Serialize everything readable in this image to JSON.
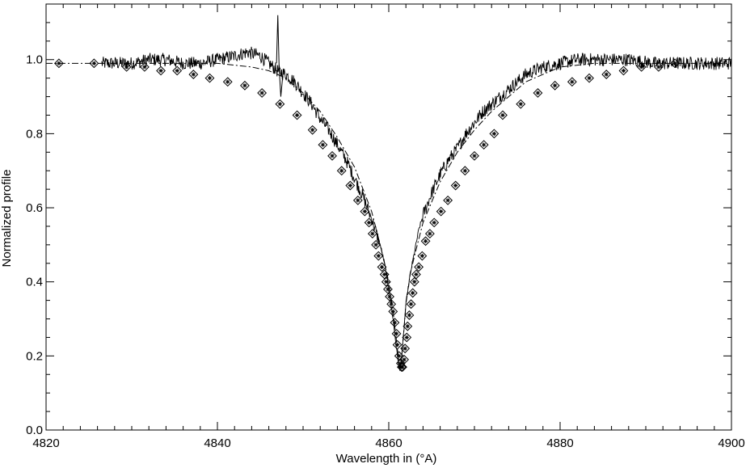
{
  "chart_data": {
    "type": "line",
    "xlabel": "Wavelength in (°A)",
    "ylabel": "Normalized profile",
    "xlim": [
      4820,
      4900
    ],
    "ylim": [
      0.0,
      1.15
    ],
    "x_ticks": [
      4820,
      4840,
      4860,
      4880,
      4900
    ],
    "x_tick_labels": [
      "4820",
      "4840",
      "4860",
      "4880",
      "4900"
    ],
    "y_ticks": [
      0.0,
      0.2,
      0.4,
      0.6,
      0.8,
      1.0
    ],
    "y_tick_labels": [
      "0.0",
      "0.2",
      "0.4",
      "0.6",
      "0.8",
      "1.0"
    ],
    "grid": false,
    "legend": "none",
    "series": [
      {
        "kind": "line-noisy",
        "style": "solid",
        "color": "#000000",
        "x": [
          4826.5,
          4828,
          4830,
          4832,
          4834,
          4836,
          4838,
          4840,
          4842,
          4843.5,
          4845,
          4846,
          4847,
          4848,
          4849,
          4850,
          4851,
          4852,
          4853,
          4854,
          4855,
          4856,
          4857,
          4858,
          4859,
          4859.5,
          4860,
          4860.5,
          4861,
          4861.3,
          4861.6,
          4862,
          4862.5,
          4863,
          4863.5,
          4864,
          4865,
          4866,
          4867,
          4868,
          4869,
          4870,
          4871,
          4872,
          4873,
          4874,
          4875,
          4876,
          4878,
          4880,
          4882,
          4885,
          4888,
          4891,
          4894,
          4897,
          4900
        ],
        "y": [
          0.99,
          0.99,
          0.99,
          1.0,
          1.0,
          0.99,
          0.99,
          1.0,
          1.01,
          1.02,
          1.01,
          0.99,
          0.97,
          0.96,
          0.94,
          0.91,
          0.88,
          0.84,
          0.81,
          0.77,
          0.73,
          0.68,
          0.63,
          0.57,
          0.5,
          0.45,
          0.38,
          0.3,
          0.2,
          0.16,
          0.22,
          0.34,
          0.42,
          0.48,
          0.54,
          0.58,
          0.64,
          0.69,
          0.73,
          0.76,
          0.8,
          0.83,
          0.86,
          0.88,
          0.9,
          0.92,
          0.94,
          0.96,
          0.98,
          0.99,
          1.0,
          1.0,
          1.0,
          0.99,
          0.99,
          0.99,
          0.99
        ]
      },
      {
        "kind": "line-dashed",
        "style": "dashed",
        "color": "#000000",
        "x": [
          4820,
          4824,
          4828,
          4832,
          4836,
          4840,
          4844,
          4846,
          4848,
          4850,
          4852,
          4854,
          4856,
          4858,
          4859,
          4860,
          4860.5,
          4861,
          4861.3,
          4861.6,
          4862,
          4862.5,
          4863,
          4864,
          4866,
          4868,
          4870,
          4872,
          4874,
          4876,
          4878,
          4880,
          4884,
          4888,
          4892,
          4896,
          4900
        ],
        "y": [
          0.99,
          0.99,
          0.99,
          0.99,
          0.99,
          0.99,
          0.98,
          0.97,
          0.95,
          0.91,
          0.86,
          0.79,
          0.71,
          0.59,
          0.5,
          0.4,
          0.32,
          0.22,
          0.16,
          0.22,
          0.34,
          0.42,
          0.47,
          0.56,
          0.67,
          0.75,
          0.81,
          0.86,
          0.9,
          0.94,
          0.96,
          0.98,
          0.99,
          0.99,
          0.99,
          0.99,
          0.99
        ]
      },
      {
        "kind": "markers",
        "marker": "diamond-with-asterisk",
        "color": "#000000",
        "x": [
          4821.5,
          4825.6,
          4829.4,
          4831.5,
          4833.4,
          4835.3,
          4837.2,
          4839.1,
          4841.2,
          4843.2,
          4845.2,
          4847.3,
          4849.3,
          4851.1,
          4852.3,
          4853.4,
          4854.5,
          4855.5,
          4856.4,
          4857.2,
          4857.7,
          4858.1,
          4858.5,
          4858.8,
          4859.2,
          4859.5,
          4859.7,
          4859.9,
          4860.1,
          4860.3,
          4860.5,
          4860.7,
          4860.9,
          4861.0,
          4861.2,
          4861.4,
          4861.5,
          4861.6,
          4861.8,
          4861.9,
          4862.1,
          4862.2,
          4862.4,
          4862.6,
          4862.8,
          4863.0,
          4863.2,
          4863.5,
          4863.9,
          4864.3,
          4864.8,
          4865.3,
          4866.1,
          4866.9,
          4867.8,
          4868.9,
          4870.0,
          4871.1,
          4872.3,
          4873.3,
          4875.4,
          4877.4,
          4879.4,
          4881.4,
          4883.4,
          4885.4,
          4887.4,
          4889.5,
          4891.5,
          4893.4
        ],
        "y": [
          0.99,
          0.99,
          0.98,
          0.98,
          0.97,
          0.97,
          0.96,
          0.95,
          0.94,
          0.93,
          0.91,
          0.88,
          0.85,
          0.81,
          0.77,
          0.74,
          0.7,
          0.66,
          0.62,
          0.59,
          0.56,
          0.53,
          0.5,
          0.47,
          0.44,
          0.42,
          0.4,
          0.38,
          0.36,
          0.34,
          0.32,
          0.29,
          0.26,
          0.23,
          0.2,
          0.18,
          0.17,
          0.17,
          0.19,
          0.22,
          0.25,
          0.28,
          0.31,
          0.34,
          0.37,
          0.4,
          0.42,
          0.44,
          0.47,
          0.51,
          0.53,
          0.56,
          0.59,
          0.62,
          0.66,
          0.7,
          0.74,
          0.77,
          0.8,
          0.85,
          0.88,
          0.91,
          0.93,
          0.94,
          0.95,
          0.96,
          0.97,
          0.98,
          0.98,
          0.99
        ]
      }
    ]
  }
}
